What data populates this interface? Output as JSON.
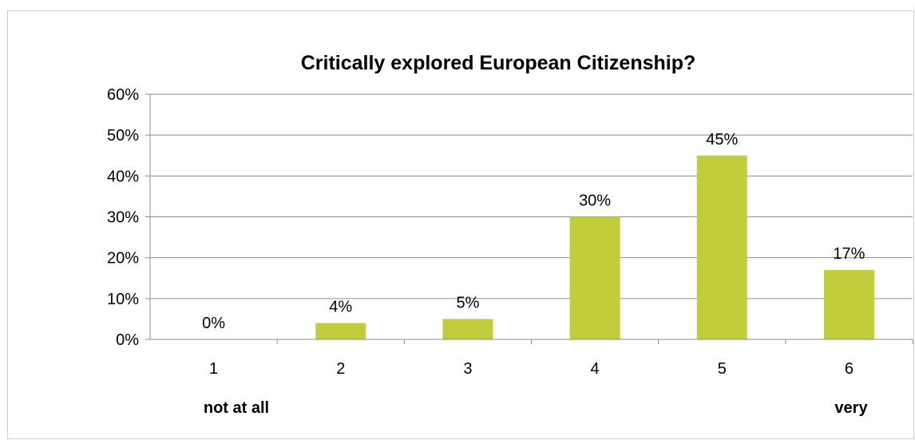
{
  "chart_data": {
    "type": "bar",
    "title": "Critically explored European Citizenship?",
    "categories": [
      "1",
      "2",
      "3",
      "4",
      "5",
      "6"
    ],
    "values": [
      0,
      4,
      5,
      30,
      45,
      17
    ],
    "data_labels": [
      "0%",
      "4%",
      "5%",
      "30%",
      "45%",
      "17%"
    ],
    "y_ticks": [
      "0%",
      "10%",
      "20%",
      "30%",
      "40%",
      "50%",
      "60%"
    ],
    "ylim": [
      0,
      60
    ],
    "y_unit": "percent",
    "grid": true,
    "legend": "none",
    "bar_color": "#c1cd3a",
    "annotations": {
      "low_end": "not at all",
      "high_end": "very"
    }
  }
}
